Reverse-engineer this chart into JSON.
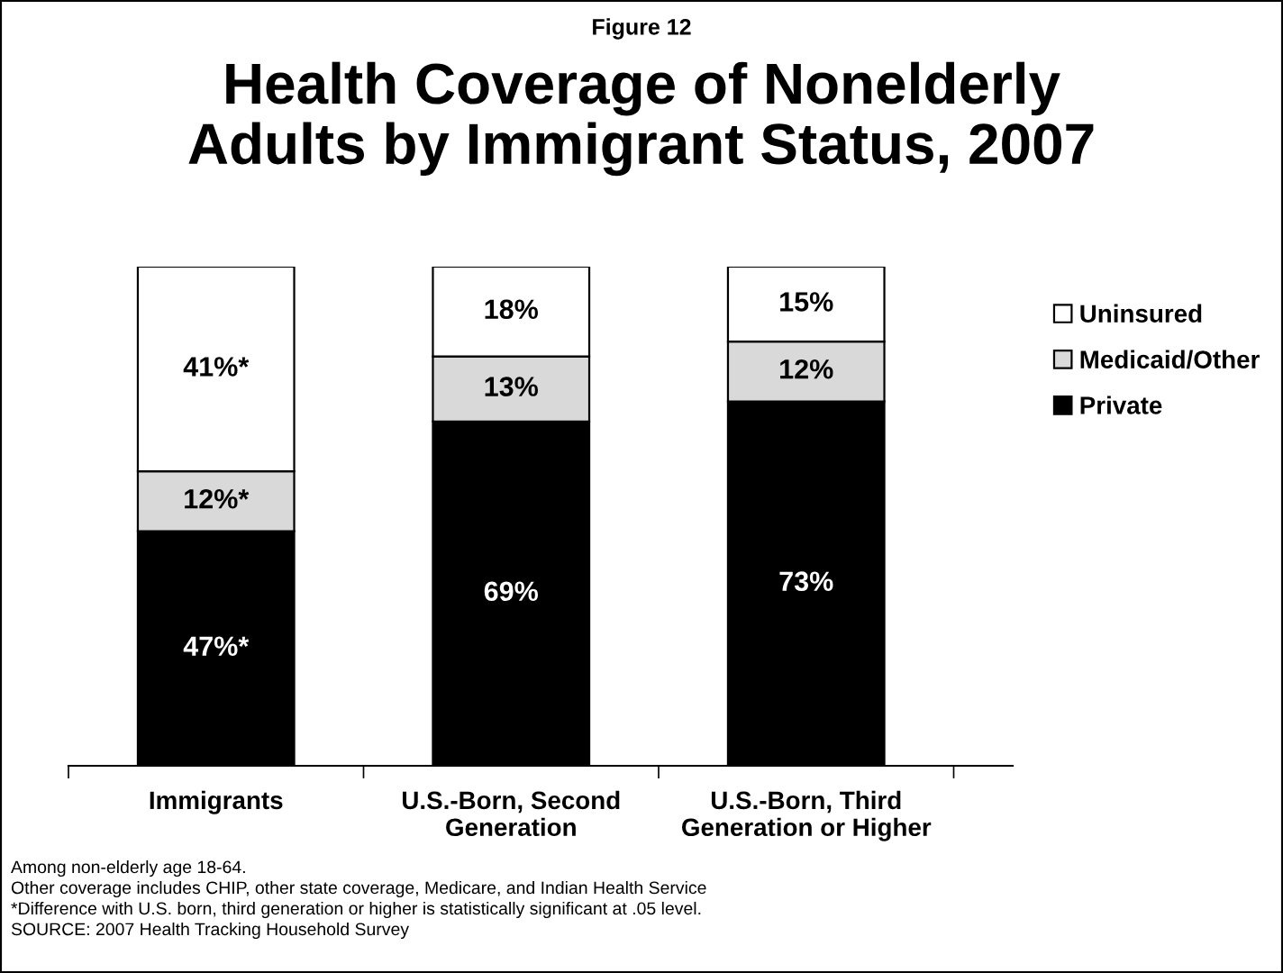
{
  "chart_data": {
    "type": "bar",
    "stacked": true,
    "subtitle": "Figure 12",
    "title": "Health Coverage of Nonelderly\nAdults by Immigrant Status, 2007",
    "categories": [
      "Immigrants",
      "U.S.-Born, Second\nGeneration",
      "U.S.-Born, Third\nGeneration or Higher"
    ],
    "series": [
      {
        "name": "Private",
        "color": "#000000",
        "values": [
          47,
          69,
          73
        ],
        "value_labels": [
          "47%*",
          "69%",
          "73%"
        ]
      },
      {
        "name": "Medicaid/Other",
        "color": "#d9d9d9",
        "values": [
          12,
          13,
          12
        ],
        "value_labels": [
          "12%*",
          "13%",
          "12%"
        ]
      },
      {
        "name": "Uninsured",
        "color": "#ffffff",
        "values": [
          41,
          18,
          15
        ],
        "value_labels": [
          "41%*",
          "18%",
          "15%"
        ]
      }
    ],
    "legend": "right",
    "grid": false,
    "annotations": [
      "Among non-elderly age 18-64.",
      "Other coverage includes CHIP, other state coverage, Medicare, and Indian Health Service",
      "*Difference with U.S. born, third generation or higher is statistically significant at .05 level.",
      "SOURCE: 2007 Health Tracking Household Survey"
    ]
  }
}
